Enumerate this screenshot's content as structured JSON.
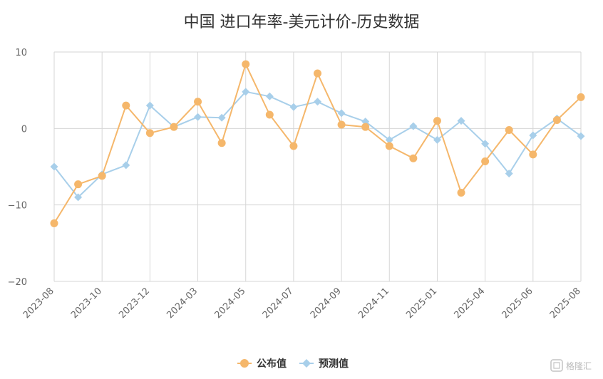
{
  "chart_data": {
    "type": "line",
    "title": "中国 进口年率-美元计价-历史数据",
    "xlabel": "",
    "ylabel": "",
    "ylim": [
      -20,
      10
    ],
    "y_ticks": [
      10,
      0,
      -10,
      -20
    ],
    "y_tick_labels": [
      "10",
      "0",
      "−10",
      "−20"
    ],
    "x_tick_labels": [
      "2023-08",
      "2023-10",
      "2023-12",
      "2024-03",
      "2024-05",
      "2024-07",
      "2024-09",
      "2024-11",
      "2025-01",
      "2025-04",
      "2025-06",
      "2025-08"
    ],
    "x_tick_index": [
      0,
      2,
      4,
      6,
      8,
      10,
      12,
      14,
      16,
      18,
      20,
      22
    ],
    "categories": [
      "2023-08",
      "2023-09",
      "2023-10",
      "2023-11",
      "2023-12",
      "2024-01",
      "2024-03",
      "2024-04",
      "2024-05",
      "2024-06",
      "2024-07",
      "2024-08",
      "2024-09",
      "2024-10",
      "2024-11",
      "2024-12",
      "2025-01",
      "2025-03",
      "2025-04",
      "2025-05",
      "2025-06",
      "2025-07",
      "2025-08"
    ],
    "grid": true,
    "legend_position": "bottom-center",
    "series": [
      {
        "name": "公布值",
        "color": "#f5b76b",
        "marker": "circle",
        "values": [
          -12.4,
          -7.3,
          -6.2,
          3.0,
          -0.6,
          0.2,
          3.5,
          -1.9,
          8.4,
          1.8,
          -2.3,
          7.2,
          0.5,
          0.2,
          -2.3,
          -3.9,
          1.0,
          -8.4,
          -4.3,
          -0.2,
          -3.4,
          1.1,
          4.1
        ]
      },
      {
        "name": "预测值",
        "color": "#a8cfea",
        "marker": "diamond",
        "values": [
          -5.0,
          -9.0,
          -6.0,
          -4.8,
          3.0,
          0.2,
          1.5,
          1.4,
          4.8,
          4.2,
          2.8,
          3.5,
          2.0,
          0.9,
          -1.5,
          0.3,
          -1.5,
          1.0,
          -2.0,
          -5.9,
          -0.9,
          1.3,
          -1.0
        ]
      }
    ]
  },
  "watermark": {
    "text": "格隆汇",
    "icon": "glh-logo-icon"
  }
}
